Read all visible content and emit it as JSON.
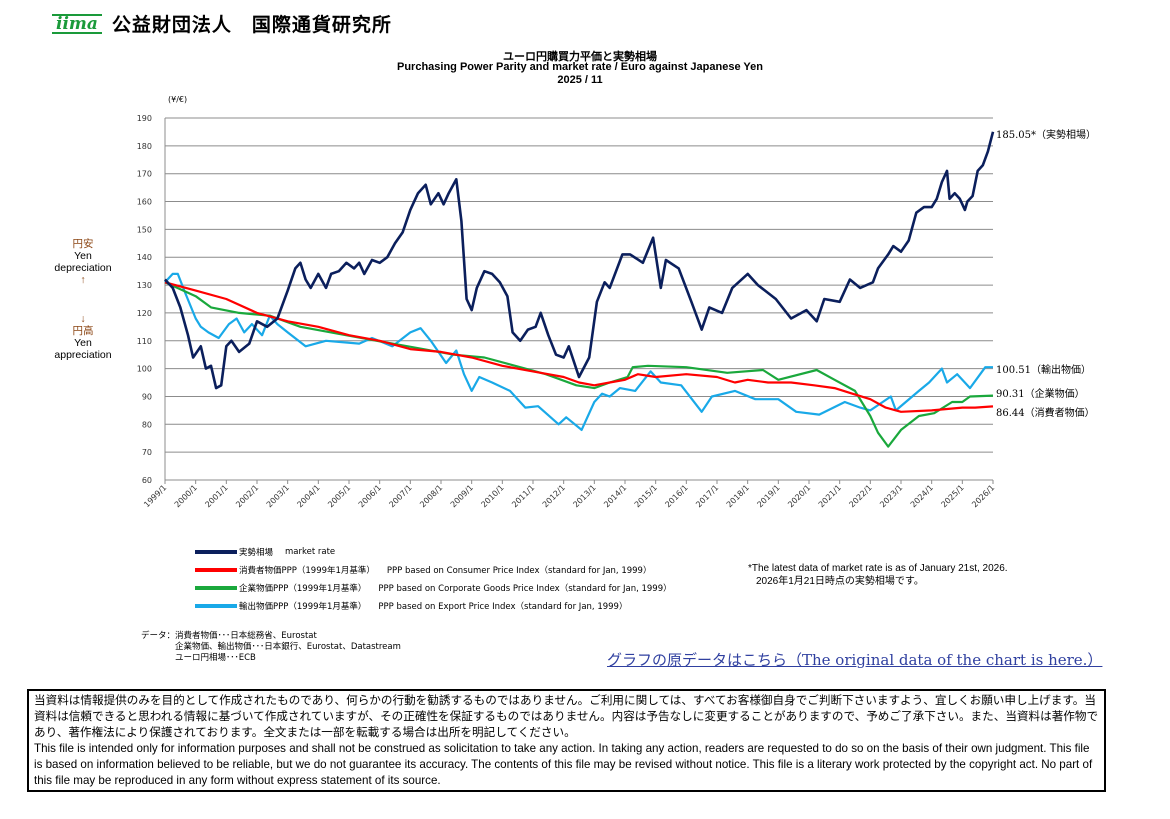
{
  "header": {
    "logo_text": "iima",
    "org_name": "公益財団法人　国際通貨研究所"
  },
  "chart_data": {
    "type": "line",
    "title_jp": "ユーロ円購買力平価と実勢相場",
    "title": "Purchasing Power Parity and market rate / Euro against Japanese Yen",
    "subtitle": "2025 / 11",
    "ylabel": "(¥/€)",
    "ylim": [
      60,
      190
    ],
    "yticks": [
      60,
      70,
      80,
      90,
      100,
      110,
      120,
      130,
      140,
      150,
      160,
      170,
      180,
      190
    ],
    "xlim": [
      "1999-01",
      "2026-01"
    ],
    "xticks": [
      "1999/1",
      "2000/1",
      "2001/1",
      "2002/1",
      "2003/1",
      "2004/1",
      "2005/1",
      "2006/1",
      "2007/1",
      "2008/1",
      "2009/1",
      "2010/1",
      "2011/1",
      "2012/1",
      "2013/1",
      "2014/1",
      "2015/1",
      "2016/1",
      "2017/1",
      "2018/1",
      "2019/1",
      "2020/1",
      "2021/1",
      "2022/1",
      "2023/1",
      "2024/1",
      "2025/1",
      "2026/1"
    ],
    "grid": true,
    "legend_position": "bottom",
    "annotations": {
      "up_jp": "円安",
      "up_en1": "Yen",
      "up_en2": "depreciation",
      "up_arrow": "↑",
      "down_arrow": "↓",
      "down_jp": "円高",
      "down_en1": "Yen",
      "down_en2": "appreciation"
    },
    "series": [
      {
        "name": "実勢相場　market rate",
        "name_jp": "実勢相場",
        "name_en": "market rate",
        "color": "#0b1f5c",
        "end_label": "185.05*（実勢相場）",
        "points": [
          [
            "1999-01",
            132
          ],
          [
            "1999-04",
            129
          ],
          [
            "1999-07",
            122
          ],
          [
            "1999-10",
            112
          ],
          [
            "1999-12",
            104
          ],
          [
            "2000-03",
            108
          ],
          [
            "2000-05",
            100
          ],
          [
            "2000-07",
            101
          ],
          [
            "2000-09",
            93
          ],
          [
            "2000-11",
            94
          ],
          [
            "2001-01",
            108
          ],
          [
            "2001-03",
            110
          ],
          [
            "2001-06",
            106
          ],
          [
            "2001-10",
            109
          ],
          [
            "2002-01",
            117
          ],
          [
            "2002-05",
            115
          ],
          [
            "2002-09",
            118
          ],
          [
            "2003-01",
            128
          ],
          [
            "2003-04",
            136
          ],
          [
            "2003-06",
            138
          ],
          [
            "2003-08",
            132
          ],
          [
            "2003-10",
            129
          ],
          [
            "2004-01",
            134
          ],
          [
            "2004-04",
            129
          ],
          [
            "2004-06",
            134
          ],
          [
            "2004-09",
            135
          ],
          [
            "2004-12",
            138
          ],
          [
            "2005-03",
            136
          ],
          [
            "2005-05",
            138
          ],
          [
            "2005-07",
            134
          ],
          [
            "2005-10",
            139
          ],
          [
            "2006-01",
            138
          ],
          [
            "2006-04",
            140
          ],
          [
            "2006-07",
            145
          ],
          [
            "2006-10",
            149
          ],
          [
            "2007-01",
            157
          ],
          [
            "2007-04",
            163
          ],
          [
            "2007-07",
            166
          ],
          [
            "2007-09",
            159
          ],
          [
            "2007-12",
            163
          ],
          [
            "2008-02",
            159
          ],
          [
            "2008-04",
            163
          ],
          [
            "2008-07",
            168
          ],
          [
            "2008-09",
            153
          ],
          [
            "2008-11",
            125
          ],
          [
            "2009-01",
            121
          ],
          [
            "2009-03",
            129
          ],
          [
            "2009-06",
            135
          ],
          [
            "2009-09",
            134
          ],
          [
            "2009-12",
            131
          ],
          [
            "2010-03",
            126
          ],
          [
            "2010-05",
            113
          ],
          [
            "2010-08",
            110
          ],
          [
            "2010-11",
            114
          ],
          [
            "2011-02",
            115
          ],
          [
            "2011-04",
            120
          ],
          [
            "2011-07",
            112
          ],
          [
            "2011-10",
            105
          ],
          [
            "2012-01",
            104
          ],
          [
            "2012-03",
            108
          ],
          [
            "2012-07",
            97
          ],
          [
            "2012-11",
            104
          ],
          [
            "2013-02",
            124
          ],
          [
            "2013-05",
            131
          ],
          [
            "2013-07",
            129
          ],
          [
            "2013-12",
            141
          ],
          [
            "2014-03",
            141
          ],
          [
            "2014-08",
            138
          ],
          [
            "2014-12",
            147
          ],
          [
            "2015-03",
            129
          ],
          [
            "2015-05",
            139
          ],
          [
            "2015-10",
            136
          ],
          [
            "2016-03",
            124
          ],
          [
            "2016-07",
            114
          ],
          [
            "2016-10",
            122
          ],
          [
            "2017-03",
            120
          ],
          [
            "2017-07",
            129
          ],
          [
            "2018-01",
            134
          ],
          [
            "2018-05",
            130
          ],
          [
            "2018-12",
            125
          ],
          [
            "2019-06",
            118
          ],
          [
            "2019-12",
            121
          ],
          [
            "2020-04",
            117
          ],
          [
            "2020-07",
            125
          ],
          [
            "2021-01",
            124
          ],
          [
            "2021-05",
            132
          ],
          [
            "2021-09",
            129
          ],
          [
            "2022-02",
            131
          ],
          [
            "2022-04",
            136
          ],
          [
            "2022-08",
            141
          ],
          [
            "2022-10",
            144
          ],
          [
            "2023-01",
            142
          ],
          [
            "2023-04",
            146
          ],
          [
            "2023-07",
            156
          ],
          [
            "2023-10",
            158
          ],
          [
            "2024-01",
            158
          ],
          [
            "2024-03",
            161
          ],
          [
            "2024-05",
            167
          ],
          [
            "2024-07",
            171
          ],
          [
            "2024-08",
            161
          ],
          [
            "2024-10",
            163
          ],
          [
            "2024-12",
            161
          ],
          [
            "2025-02",
            157
          ],
          [
            "2025-03",
            160
          ],
          [
            "2025-05",
            162
          ],
          [
            "2025-07",
            171
          ],
          [
            "2025-09",
            173
          ],
          [
            "2025-11",
            178
          ],
          [
            "2026-01",
            185.05
          ]
        ]
      },
      {
        "name": "消費者物価PPP（1999年1月基準）　PPP based on Consumer Price Index（standard for Jan, 1999）",
        "name_jp": "消費者物価PPP（1999年1月基準）",
        "name_en": "PPP based on Consumer Price Index（standard for Jan, 1999）",
        "color": "#ff0000",
        "end_label": "86.44（消費者物価）",
        "points": [
          [
            "1999-01",
            131
          ],
          [
            "2000-01",
            128
          ],
          [
            "2001-01",
            125
          ],
          [
            "2002-01",
            120
          ],
          [
            "2003-01",
            117
          ],
          [
            "2004-01",
            115
          ],
          [
            "2005-01",
            112
          ],
          [
            "2006-01",
            110
          ],
          [
            "2007-01",
            107
          ],
          [
            "2008-01",
            106
          ],
          [
            "2009-01",
            104
          ],
          [
            "2010-01",
            101
          ],
          [
            "2011-01",
            99
          ],
          [
            "2012-01",
            97
          ],
          [
            "2012-07",
            95
          ],
          [
            "2013-01",
            94
          ],
          [
            "2013-07",
            95
          ],
          [
            "2014-01",
            96
          ],
          [
            "2014-06",
            98
          ],
          [
            "2015-01",
            97
          ],
          [
            "2016-01",
            98
          ],
          [
            "2017-01",
            97
          ],
          [
            "2017-08",
            95
          ],
          [
            "2018-01",
            96
          ],
          [
            "2018-09",
            95
          ],
          [
            "2019-06",
            95
          ],
          [
            "2020-03",
            94
          ],
          [
            "2020-11",
            93
          ],
          [
            "2021-06",
            91
          ],
          [
            "2022-01",
            89
          ],
          [
            "2022-07",
            86
          ],
          [
            "2023-01",
            84.5
          ],
          [
            "2024-01",
            85
          ],
          [
            "2025-01",
            86
          ],
          [
            "2025-06",
            86
          ],
          [
            "2026-01",
            86.44
          ]
        ]
      },
      {
        "name": "企業物価PPP（1999年1月基準）　PPP based on Corporate Goods Price Index（standard for Jan, 1999）",
        "name_jp": "企業物価PPP（1999年1月基準）",
        "name_en": "PPP based on Corporate Goods Price Index（standard for Jan, 1999）",
        "color": "#1aa83c",
        "end_label": "90.31（企業物価）",
        "points": [
          [
            "1999-01",
            131
          ],
          [
            "2000-01",
            126
          ],
          [
            "2000-07",
            122
          ],
          [
            "2001-06",
            120
          ],
          [
            "2002-06",
            119
          ],
          [
            "2003-06",
            115
          ],
          [
            "2004-06",
            113
          ],
          [
            "2005-06",
            111
          ],
          [
            "2006-06",
            109
          ],
          [
            "2007-06",
            107
          ],
          [
            "2008-06",
            105
          ],
          [
            "2009-06",
            104
          ],
          [
            "2010-06",
            101
          ],
          [
            "2011-06",
            98
          ],
          [
            "2012-06",
            94
          ],
          [
            "2013-01",
            93
          ],
          [
            "2013-07",
            95
          ],
          [
            "2014-02",
            97
          ],
          [
            "2014-04",
            100.5
          ],
          [
            "2014-10",
            101
          ],
          [
            "2016-01",
            100.5
          ],
          [
            "2017-05",
            98.5
          ],
          [
            "2018-07",
            99.5
          ],
          [
            "2019-01",
            96
          ],
          [
            "2020-04",
            99.5
          ],
          [
            "2020-11",
            96
          ],
          [
            "2021-07",
            92
          ],
          [
            "2022-01",
            83
          ],
          [
            "2022-04",
            77
          ],
          [
            "2022-08",
            72
          ],
          [
            "2023-01",
            78
          ],
          [
            "2023-08",
            83
          ],
          [
            "2024-02",
            84
          ],
          [
            "2024-09",
            88
          ],
          [
            "2025-01",
            88
          ],
          [
            "2025-04",
            90
          ],
          [
            "2026-01",
            90.31
          ]
        ]
      },
      {
        "name": "輸出物価PPP（1999年1月基準）　PPP based on Export Price Index（standard for Jan, 1999）",
        "name_jp": "輸出物価PPP（1999年1月基準）",
        "name_en": "PPP based on Export Price Index（standard for Jan, 1999）",
        "color": "#19a9e8",
        "end_label": "100.51（輸出物価）",
        "points": [
          [
            "1999-01",
            131
          ],
          [
            "1999-04",
            134
          ],
          [
            "1999-06",
            134
          ],
          [
            "1999-09",
            127
          ],
          [
            "2000-01",
            118
          ],
          [
            "2000-03",
            115
          ],
          [
            "2000-06",
            113
          ],
          [
            "2000-10",
            111
          ],
          [
            "2001-02",
            116
          ],
          [
            "2001-05",
            118
          ],
          [
            "2001-08",
            113
          ],
          [
            "2001-11",
            116
          ],
          [
            "2002-03",
            112
          ],
          [
            "2002-06",
            119
          ],
          [
            "2002-09",
            116
          ],
          [
            "2003-01",
            113
          ],
          [
            "2003-08",
            108
          ],
          [
            "2004-04",
            110
          ],
          [
            "2005-05",
            109
          ],
          [
            "2005-10",
            111
          ],
          [
            "2006-06",
            108
          ],
          [
            "2007-01",
            113
          ],
          [
            "2007-05",
            114.5
          ],
          [
            "2007-09",
            110
          ],
          [
            "2008-03",
            102
          ],
          [
            "2008-07",
            106.5
          ],
          [
            "2008-10",
            98
          ],
          [
            "2009-01",
            92
          ],
          [
            "2009-04",
            97
          ],
          [
            "2009-09",
            95
          ],
          [
            "2010-04",
            92
          ],
          [
            "2010-10",
            86
          ],
          [
            "2011-03",
            86.5
          ],
          [
            "2011-11",
            80
          ],
          [
            "2012-02",
            82.5
          ],
          [
            "2012-08",
            78
          ],
          [
            "2013-01",
            88
          ],
          [
            "2013-04",
            91
          ],
          [
            "2013-07",
            90
          ],
          [
            "2013-11",
            93
          ],
          [
            "2014-05",
            92
          ],
          [
            "2014-11",
            99
          ],
          [
            "2015-03",
            95
          ],
          [
            "2015-11",
            94
          ],
          [
            "2016-07",
            84.5
          ],
          [
            "2016-11",
            90
          ],
          [
            "2017-08",
            92
          ],
          [
            "2018-04",
            89
          ],
          [
            "2019-01",
            89
          ],
          [
            "2019-08",
            84.5
          ],
          [
            "2020-05",
            83.5
          ],
          [
            "2021-03",
            88
          ],
          [
            "2021-09",
            86
          ],
          [
            "2022-01",
            85
          ],
          [
            "2022-09",
            90
          ],
          [
            "2022-11",
            85
          ],
          [
            "2023-08",
            92
          ],
          [
            "2023-12",
            95
          ],
          [
            "2024-05",
            100
          ],
          [
            "2024-07",
            95
          ],
          [
            "2024-11",
            98
          ],
          [
            "2025-04",
            93
          ],
          [
            "2025-10",
            100.5
          ],
          [
            "2026-01",
            100.51
          ]
        ]
      }
    ]
  },
  "note": {
    "line1": "*The latest data of market rate is as of January 21st, 2026.",
    "line2": "2026年1月21日時点の実勢相場です。"
  },
  "source": {
    "line1": "データ：消費者物価･･･日本総務省、Eurostat",
    "line2": "企業物価、輸出物価･･･日本銀行、Eurostat、Datastream",
    "line3": "ユーロ円相場･･･ECB"
  },
  "link": {
    "label": "グラフの原データはこちら（The original data of the chart is here.）"
  },
  "disclaimer": {
    "jp": "当資料は情報提供のみを目的として作成されたものであり、何らかの行動を勧誘するものではありません。ご利用に関しては、すべてお客様御自身でご判断下さいますよう、宜しくお願い申し上げます。当資料は信頼できると思われる情報に基づいて作成されていますが、その正確性を保証するものではありません。内容は予告なしに変更することがありますので、予めご了承下さい。また、当資料は著作物であり、著作権法により保護されております。全文または一部を転載する場合は出所を明記してください。",
    "en": "This file is intended only for information purposes and shall not be construed as solicitation to take any action. In taking any action, readers are requested to do so on the basis of their own judgment. This file is based on information believed to be reliable, but we do not guarantee its accuracy. The contents of this file may be revised without notice. This file is a literary work protected by the copyright act. No part of this file may be reproduced in any form without express statement of its source."
  }
}
